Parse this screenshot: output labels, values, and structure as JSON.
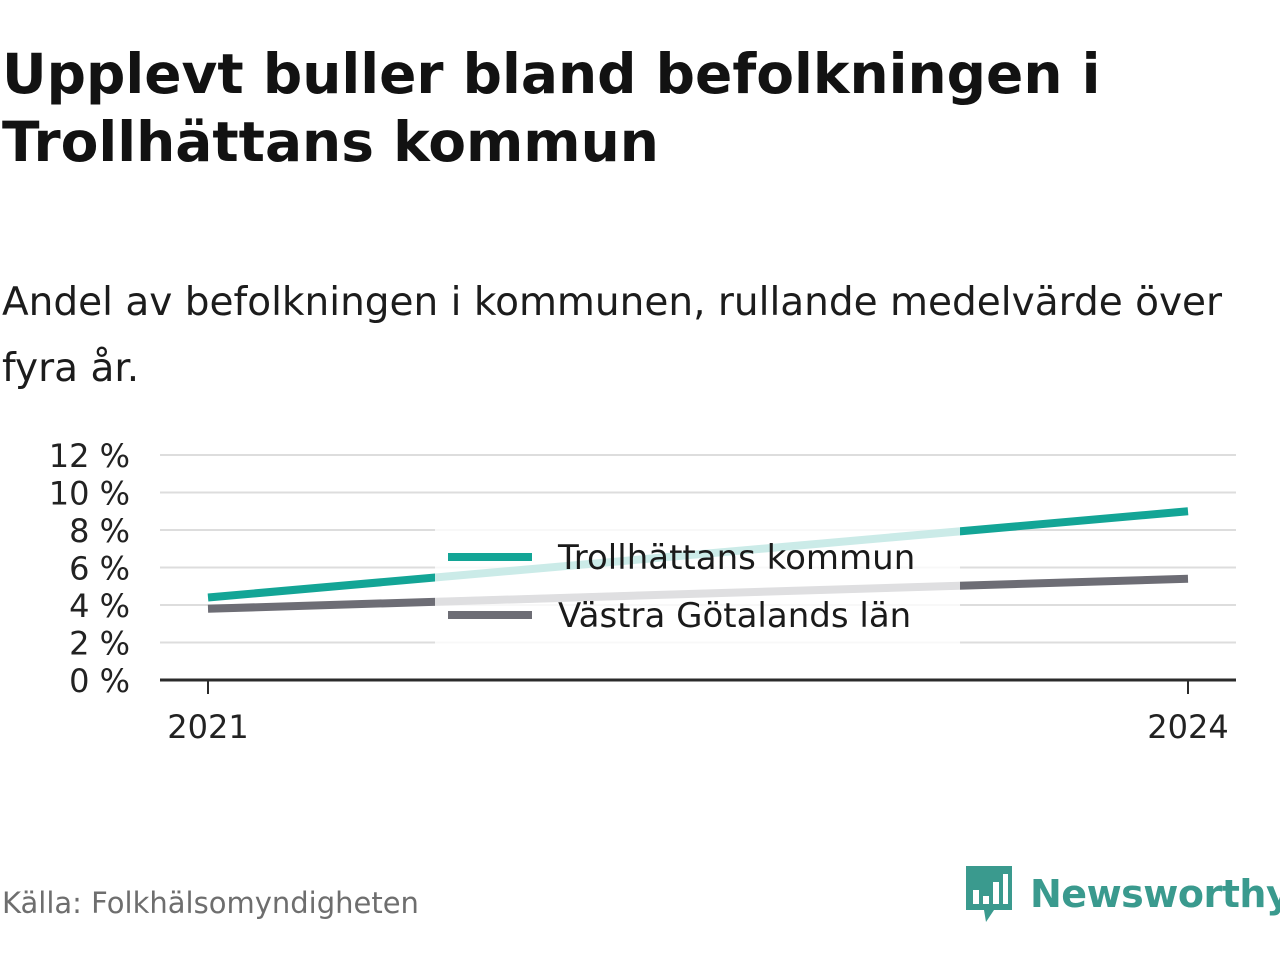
{
  "title": "Upplevt buller bland befolkningen i Trollhättans kommun",
  "subtitle": "Andel av befolkningen i kommunen, rullande medelvärde över fyra år.",
  "source": "Källa: Folkhälsomyndigheten",
  "brand": {
    "name": "Newsworthy",
    "icon": "newsworthy-logo-icon",
    "color": "#3a9a8e"
  },
  "chart_data": {
    "type": "line",
    "x": [
      2021,
      2024
    ],
    "x_tick_labels": [
      "2021",
      "2024"
    ],
    "y_tick_labels": [
      "0 %",
      "2 %",
      "4 %",
      "6 %",
      "8 %",
      "10 %",
      "12 %"
    ],
    "y_ticks": [
      0,
      2,
      4,
      6,
      8,
      10,
      12
    ],
    "ylim": [
      0,
      12
    ],
    "grid": true,
    "legend_placement": "center",
    "series": [
      {
        "name": "Trollhättans kommun",
        "color": "#13a596",
        "values": [
          4.4,
          9.0
        ]
      },
      {
        "name": "Västra Götalands län",
        "color": "#6d6d75",
        "values": [
          3.8,
          5.4
        ]
      }
    ]
  }
}
